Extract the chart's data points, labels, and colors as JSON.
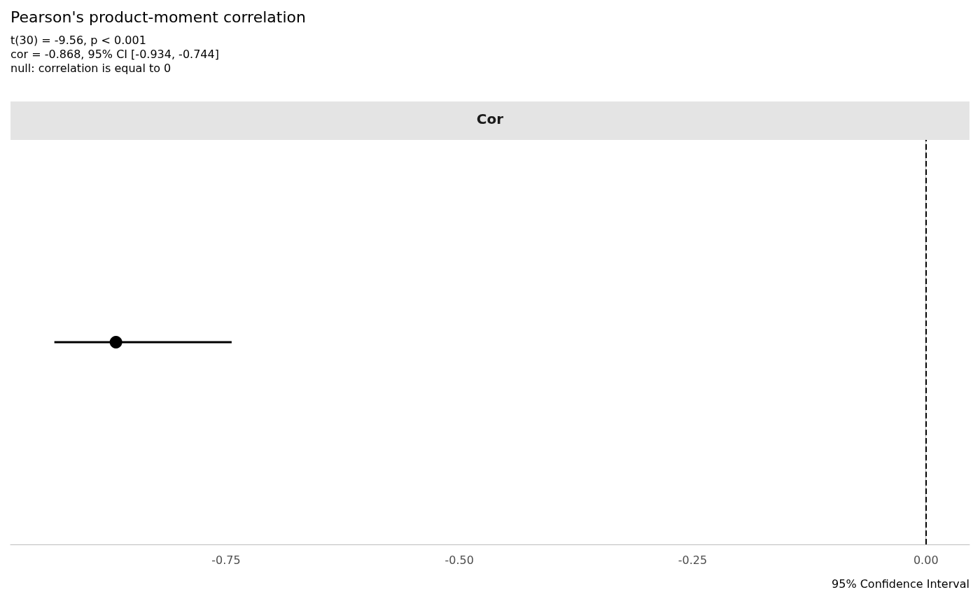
{
  "chart_data": {
    "type": "scatter",
    "title": "Pearson's product-moment correlation",
    "subtitle": "t(30) = -9.56, p < 0.001\ncor = -0.868, 95% CI [-0.934, -0.744]\nnull: correlation is equal to 0",
    "xlabel": "95% Confidence Interval",
    "annotations": [
      "Cor"
    ],
    "orientation": "horizontal",
    "categories": [
      null
    ],
    "series": [
      {
        "color": "#000000",
        "values": [
          -0.868
        ],
        "errors": [
          [
            -0.934,
            -0.744
          ]
        ]
      }
    ],
    "xlim": [
      -0.981,
      0.0467
    ],
    "xticks": [
      -0.75,
      {
        "value": -0.5,
        "label": "-0.50"
      },
      -0.25,
      {
        "value": 0,
        "label": "0.00"
      }
    ],
    "ref_lines": [
      {
        "axis": "x",
        "value": 0,
        "color": "#000000",
        "line_style": "dashed"
      }
    ],
    "grid": false,
    "marker": "circle",
    "tick_labels": "x"
  }
}
